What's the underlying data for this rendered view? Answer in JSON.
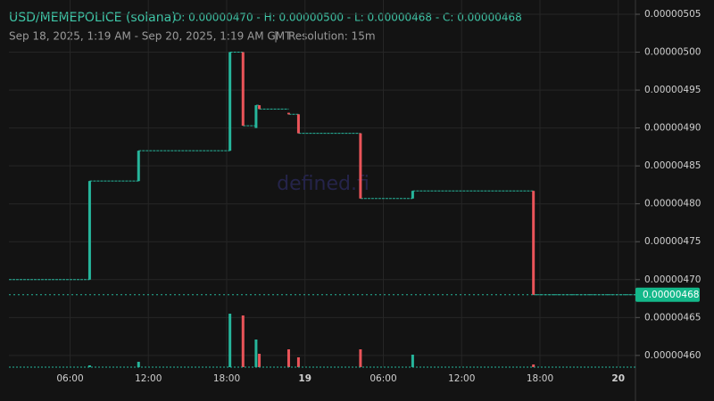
{
  "chart_data": {
    "type": "candlestick",
    "title": "USD/MEMEPOLICE (solana)",
    "ohlc_summary": "O: 0.00000470 - H: 0.00000500 - L: 0.00000468 - C: 0.00000468",
    "subtitle": "Sep 18, 2025, 1:19 AM - Sep 20, 2025, 1:19 AM GMT",
    "separator": "|",
    "resolution": "Resolution: 15m",
    "watermark": "defined.fi",
    "x": [
      "2025-09-18T07:30",
      "2025-09-18T11:15",
      "2025-09-18T18:15",
      "2025-09-18T19:15",
      "2025-09-18T20:15",
      "2025-09-18T20:30",
      "2025-09-18T22:45",
      "2025-09-18T23:30",
      "2025-09-19T04:15",
      "2025-09-19T08:15",
      "2025-09-19T17:30"
    ],
    "open": [
      4.7e-06,
      4.83e-06,
      4.87e-06,
      5e-06,
      4.9e-06,
      4.93e-06,
      4.92e-06,
      4.918e-06,
      4.893e-06,
      4.807e-06,
      4.817e-06
    ],
    "high": [
      4.83e-06,
      4.87e-06,
      5e-06,
      5e-06,
      4.93e-06,
      4.93e-06,
      4.92e-06,
      4.918e-06,
      4.893e-06,
      4.817e-06,
      4.817e-06
    ],
    "low": [
      4.7e-06,
      4.83e-06,
      4.87e-06,
      4.903e-06,
      4.9e-06,
      4.925e-06,
      4.918e-06,
      4.893e-06,
      4.807e-06,
      4.807e-06,
      4.68e-06
    ],
    "close": [
      4.83e-06,
      4.87e-06,
      5e-06,
      4.903e-06,
      4.93e-06,
      4.925e-06,
      4.918e-06,
      4.893e-06,
      4.807e-06,
      4.817e-06,
      4.68e-06
    ],
    "volume": [
      2,
      6,
      60,
      58,
      31,
      15,
      20,
      11,
      20,
      14,
      3
    ],
    "volume_lim": [
      0,
      100
    ],
    "up_color": "#26b59b",
    "down_color": "#ea5459",
    "xlim": [
      "2025-09-18T01:19",
      "2025-09-20T01:19"
    ],
    "xticks": [
      {
        "value": "2025-09-18T06:00",
        "label": "06:00"
      },
      {
        "value": "2025-09-18T12:00",
        "label": "12:00"
      },
      {
        "value": "2025-09-18T18:00",
        "label": "18:00"
      },
      {
        "value": "2025-09-19T00:00",
        "label": "19"
      },
      {
        "value": "2025-09-19T06:00",
        "label": "06:00"
      },
      {
        "value": "2025-09-19T12:00",
        "label": "12:00"
      },
      {
        "value": "2025-09-19T18:00",
        "label": "18:00"
      },
      {
        "value": "2025-09-20T00:00",
        "label": "20"
      }
    ],
    "ylim": [
      4.5634e-06,
      5.0688e-06
    ],
    "yticks": [
      {
        "value": 4.6e-06,
        "label": "0.00000460"
      },
      {
        "value": 4.65e-06,
        "label": "0.00000465"
      },
      {
        "value": 4.7e-06,
        "label": "0.00000470"
      },
      {
        "value": 4.75e-06,
        "label": "0.00000475"
      },
      {
        "value": 4.8e-06,
        "label": "0.00000480"
      },
      {
        "value": 4.85e-06,
        "label": "0.00000485"
      },
      {
        "value": 4.9e-06,
        "label": "0.00000490"
      },
      {
        "value": 4.95e-06,
        "label": "0.00000495"
      },
      {
        "value": 5e-06,
        "label": "0.00000500"
      },
      {
        "value": 5.05e-06,
        "label": "0.00000505"
      }
    ],
    "last_price": {
      "value": 4.68e-06,
      "label": "0.00000468"
    },
    "grid": true
  }
}
